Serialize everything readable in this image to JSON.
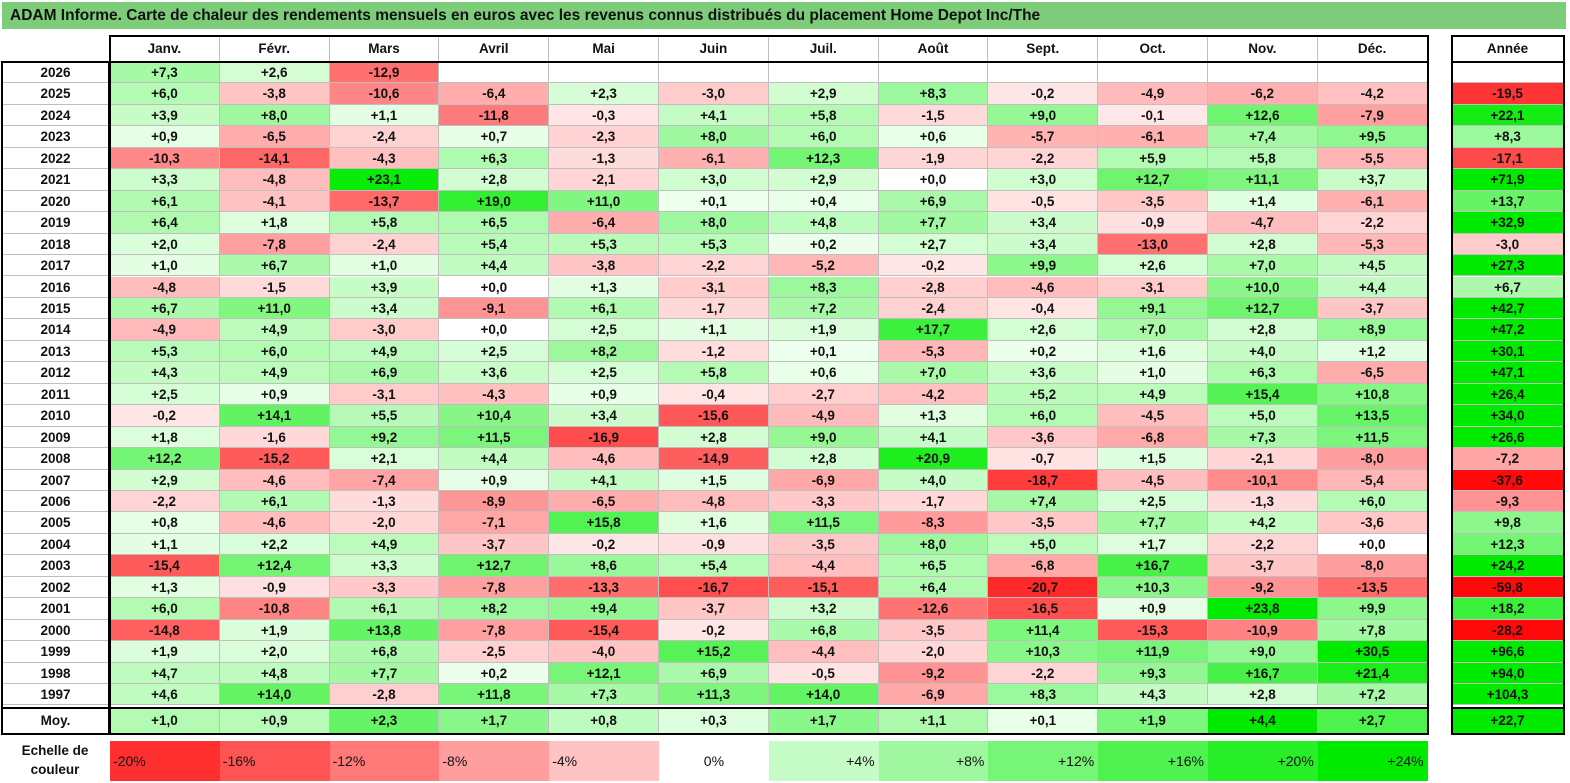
{
  "title": "ADAM Informe. Carte de chaleur des rendements mensuels en euros avec les revenus connus distribués du placement Home Depot Inc/The",
  "chart_data": {
    "type": "heatmap",
    "title": "ADAM Informe. Carte de chaleur des rendements mensuels en euros avec les revenus connus distribués du placement Home Depot Inc/The",
    "months": [
      "Janv.",
      "Févr.",
      "Mars",
      "Avril",
      "Mai",
      "Juin",
      "Juil.",
      "Août",
      "Sept.",
      "Oct.",
      "Nov.",
      "Déc."
    ],
    "year_label": "Année",
    "rows": [
      {
        "label": "2026",
        "values": [
          "+7,3",
          "+2,6",
          "-12,9",
          null,
          null,
          null,
          null,
          null,
          null,
          null,
          null,
          null
        ],
        "year": null
      },
      {
        "label": "2025",
        "values": [
          "+6,0",
          "-3,8",
          "-10,6",
          "-6,4",
          "+2,3",
          "-3,0",
          "+2,9",
          "+8,3",
          "-0,2",
          "-4,9",
          "-6,2",
          "-4,2"
        ],
        "year": "-19,5"
      },
      {
        "label": "2024",
        "values": [
          "+3,9",
          "+8,0",
          "+1,1",
          "-11,8",
          "-0,3",
          "+4,1",
          "+5,8",
          "-1,5",
          "+9,0",
          "-0,1",
          "+12,6",
          "-7,9"
        ],
        "year": "+22,1"
      },
      {
        "label": "2023",
        "values": [
          "+0,9",
          "-6,5",
          "-2,4",
          "+0,7",
          "-2,3",
          "+8,0",
          "+6,0",
          "+0,6",
          "-5,7",
          "-6,1",
          "+7,4",
          "+9,5"
        ],
        "year": "+8,3"
      },
      {
        "label": "2022",
        "values": [
          "-10,3",
          "-14,1",
          "-4,3",
          "+6,3",
          "-1,3",
          "-6,1",
          "+12,3",
          "-1,9",
          "-2,2",
          "+5,9",
          "+5,8",
          "-5,5"
        ],
        "year": "-17,1"
      },
      {
        "label": "2021",
        "values": [
          "+3,3",
          "-4,8",
          "+23,1",
          "+2,8",
          "-2,1",
          "+3,0",
          "+2,9",
          "+0,0",
          "+3,0",
          "+12,7",
          "+11,1",
          "+3,7"
        ],
        "year": "+71,9"
      },
      {
        "label": "2020",
        "values": [
          "+6,1",
          "-4,1",
          "-13,7",
          "+19,0",
          "+11,0",
          "+0,1",
          "+0,4",
          "+6,9",
          "-0,5",
          "-3,5",
          "+1,4",
          "-6,1"
        ],
        "year": "+13,7"
      },
      {
        "label": "2019",
        "values": [
          "+6,4",
          "+1,8",
          "+5,8",
          "+6,5",
          "-6,4",
          "+8,0",
          "+4,8",
          "+7,7",
          "+3,4",
          "-0,9",
          "-4,7",
          "-2,2"
        ],
        "year": "+32,9"
      },
      {
        "label": "2018",
        "values": [
          "+2,0",
          "-7,8",
          "-2,4",
          "+5,4",
          "+5,3",
          "+5,3",
          "+0,2",
          "+2,7",
          "+3,4",
          "-13,0",
          "+2,8",
          "-5,3"
        ],
        "year": "-3,0"
      },
      {
        "label": "2017",
        "values": [
          "+1,0",
          "+6,7",
          "+1,0",
          "+4,4",
          "-3,8",
          "-2,2",
          "-5,2",
          "-0,2",
          "+9,9",
          "+2,6",
          "+7,0",
          "+4,5"
        ],
        "year": "+27,3"
      },
      {
        "label": "2016",
        "values": [
          "-4,8",
          "-1,5",
          "+3,9",
          "+0,0",
          "+1,3",
          "-3,1",
          "+8,3",
          "-2,8",
          "-4,6",
          "-3,1",
          "+10,0",
          "+4,4"
        ],
        "year": "+6,7"
      },
      {
        "label": "2015",
        "values": [
          "+6,7",
          "+11,0",
          "+3,4",
          "-9,1",
          "+6,1",
          "-1,7",
          "+7,2",
          "-2,4",
          "-0,4",
          "+9,1",
          "+12,7",
          "-3,7"
        ],
        "year": "+42,7"
      },
      {
        "label": "2014",
        "values": [
          "-4,9",
          "+4,9",
          "-3,0",
          "+0,0",
          "+2,5",
          "+1,1",
          "+1,9",
          "+17,7",
          "+2,6",
          "+7,0",
          "+2,8",
          "+8,9"
        ],
        "year": "+47,2"
      },
      {
        "label": "2013",
        "values": [
          "+5,3",
          "+6,0",
          "+4,9",
          "+2,5",
          "+8,2",
          "-1,2",
          "+0,1",
          "-5,3",
          "+0,2",
          "+1,6",
          "+4,0",
          "+1,2"
        ],
        "year": "+30,1"
      },
      {
        "label": "2012",
        "values": [
          "+4,3",
          "+4,9",
          "+6,9",
          "+3,6",
          "+2,5",
          "+5,8",
          "+0,6",
          "+7,0",
          "+3,6",
          "+1,0",
          "+6,3",
          "-6,5"
        ],
        "year": "+47,1"
      },
      {
        "label": "2011",
        "values": [
          "+2,5",
          "+0,9",
          "-3,1",
          "-4,3",
          "+0,9",
          "-0,4",
          "-2,7",
          "-4,2",
          "+5,2",
          "+4,9",
          "+15,4",
          "+10,8"
        ],
        "year": "+26,4"
      },
      {
        "label": "2010",
        "values": [
          "-0,2",
          "+14,1",
          "+5,5",
          "+10,4",
          "+3,4",
          "-15,6",
          "-4,9",
          "+1,3",
          "+6,0",
          "-4,5",
          "+5,0",
          "+13,5"
        ],
        "year": "+34,0"
      },
      {
        "label": "2009",
        "values": [
          "+1,8",
          "-1,6",
          "+9,2",
          "+11,5",
          "-16,9",
          "+2,8",
          "+9,0",
          "+4,1",
          "-3,6",
          "-6,8",
          "+7,3",
          "+11,5"
        ],
        "year": "+26,6"
      },
      {
        "label": "2008",
        "values": [
          "+12,2",
          "-15,2",
          "+2,1",
          "+4,4",
          "-4,6",
          "-14,9",
          "+2,8",
          "+20,9",
          "-0,7",
          "+1,5",
          "-2,1",
          "-8,0"
        ],
        "year": "-7,2"
      },
      {
        "label": "2007",
        "values": [
          "+2,9",
          "-4,6",
          "-7,4",
          "+0,9",
          "+4,1",
          "+1,5",
          "-6,9",
          "+4,0",
          "-18,7",
          "-4,5",
          "-10,1",
          "-5,4"
        ],
        "year": "-37,6"
      },
      {
        "label": "2006",
        "values": [
          "-2,2",
          "+6,1",
          "-1,3",
          "-8,9",
          "-6,5",
          "-4,8",
          "-3,3",
          "-1,7",
          "+7,4",
          "+2,5",
          "-1,3",
          "+6,0"
        ],
        "year": "-9,3"
      },
      {
        "label": "2005",
        "values": [
          "+0,8",
          "-4,6",
          "-2,0",
          "-7,1",
          "+15,8",
          "+1,6",
          "+11,5",
          "-8,3",
          "-3,5",
          "+7,7",
          "+4,2",
          "-3,6"
        ],
        "year": "+9,8"
      },
      {
        "label": "2004",
        "values": [
          "+1,1",
          "+2,2",
          "+4,9",
          "-3,7",
          "-0,2",
          "-0,9",
          "-3,5",
          "+8,0",
          "+5,0",
          "+1,7",
          "-2,2",
          "+0,0"
        ],
        "year": "+12,3"
      },
      {
        "label": "2003",
        "values": [
          "-15,4",
          "+12,4",
          "+3,3",
          "+12,7",
          "+8,6",
          "+5,4",
          "-4,4",
          "+6,5",
          "-6,8",
          "+16,7",
          "-3,7",
          "-8,0"
        ],
        "year": "+24,2"
      },
      {
        "label": "2002",
        "values": [
          "+1,3",
          "-0,9",
          "-3,3",
          "-7,8",
          "-13,3",
          "-16,7",
          "-15,1",
          "+6,4",
          "-20,7",
          "+10,3",
          "-9,2",
          "-13,5"
        ],
        "year": "-59,8"
      },
      {
        "label": "2001",
        "values": [
          "+6,0",
          "-10,8",
          "+6,1",
          "+8,2",
          "+9,4",
          "-3,7",
          "+3,2",
          "-12,6",
          "-16,5",
          "+0,9",
          "+23,8",
          "+9,9"
        ],
        "year": "+18,2"
      },
      {
        "label": "2000",
        "values": [
          "-14,8",
          "+1,9",
          "+13,8",
          "-7,8",
          "-15,4",
          "-0,2",
          "+6,8",
          "-3,5",
          "+11,4",
          "-15,3",
          "-10,9",
          "+7,8"
        ],
        "year": "-28,2"
      },
      {
        "label": "1999",
        "values": [
          "+1,9",
          "+2,0",
          "+6,8",
          "-2,5",
          "-4,0",
          "+15,2",
          "-4,4",
          "-2,0",
          "+10,3",
          "+11,9",
          "+9,0",
          "+30,5"
        ],
        "year": "+96,6"
      },
      {
        "label": "1998",
        "values": [
          "+4,7",
          "+4,8",
          "+7,7",
          "+0,2",
          "+12,1",
          "+6,9",
          "-0,5",
          "-9,2",
          "-2,2",
          "+9,3",
          "+16,7",
          "+21,4"
        ],
        "year": "+94,0"
      },
      {
        "label": "1997",
        "values": [
          "+4,6",
          "+14,0",
          "-2,8",
          "+11,8",
          "+7,3",
          "+11,3",
          "+14,0",
          "-6,9",
          "+8,3",
          "+4,3",
          "+2,8",
          "+7,2"
        ],
        "year": "+104,3"
      }
    ],
    "average": {
      "label": "Moy.",
      "values": [
        "+1,0",
        "+0,9",
        "+2,3",
        "+1,7",
        "+0,8",
        "+0,3",
        "+1,7",
        "+1,1",
        "+0,1",
        "+1,9",
        "+4,4",
        "+2,7"
      ],
      "year": "+22,7"
    },
    "scale": {
      "label_line1": "Echelle de",
      "label_line2": "couleur",
      "stops": [
        {
          "label": "-20%",
          "value": -20
        },
        {
          "label": "-16%",
          "value": -16
        },
        {
          "label": "-12%",
          "value": -12
        },
        {
          "label": "-8%",
          "value": -8
        },
        {
          "label": "-4%",
          "value": -4
        },
        {
          "label": "0%",
          "value": 0
        },
        {
          "label": "+4%",
          "value": 4
        },
        {
          "label": "+8%",
          "value": 8
        },
        {
          "label": "+12%",
          "value": 12
        },
        {
          "label": "+16%",
          "value": 16
        },
        {
          "label": "+20%",
          "value": 20
        },
        {
          "label": "+24%",
          "value": 24
        }
      ]
    },
    "colors": {
      "neg_max": "#ff0000",
      "pos_max": "#00ee00",
      "neutral": "#ffffff",
      "title_bg": "#7dcc7a"
    }
  }
}
